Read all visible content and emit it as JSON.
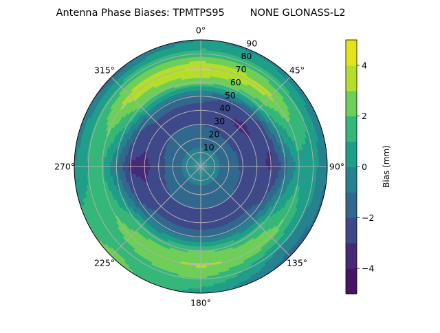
{
  "chart_data": {
    "type": "heatmap",
    "subtype": "polar-filled-contour",
    "title": "Antenna Phase Biases: TPMTPS95        NONE GLONASS-L2",
    "angular_ticks": [
      "0°",
      "45°",
      "90°",
      "135°",
      "180°",
      "225°",
      "270°",
      "315°"
    ],
    "radial_ticks": [
      "10",
      "20",
      "30",
      "40",
      "50",
      "60",
      "70",
      "80",
      "90"
    ],
    "radial_range": [
      0,
      90
    ],
    "grid": true,
    "colorbar": {
      "label": "Bias (mm)",
      "range": [
        -5,
        5
      ],
      "levels": [
        -5,
        -4,
        -3,
        -2,
        -1,
        0,
        1,
        2,
        3,
        4,
        5
      ],
      "tick_values": [
        -4,
        -2,
        0,
        2,
        4
      ],
      "tick_labels": [
        "−4",
        "−2",
        "0",
        "2",
        "4"
      ],
      "colors": [
        "#471365",
        "#482878",
        "#3e4989",
        "#31688e",
        "#26828e",
        "#1f9e89",
        "#35b779",
        "#6ece58",
        "#b5de2b",
        "#e2e418"
      ]
    },
    "azimuth_deg": [
      0,
      45,
      90,
      135,
      180,
      225,
      270,
      315
    ],
    "zenith_deg": [
      0,
      10,
      20,
      30,
      40,
      50,
      60,
      70,
      80,
      90
    ],
    "bias_mm": [
      [
        -0.5,
        -0.5,
        -0.5,
        -0.5,
        -0.5,
        -0.5,
        -0.5,
        -0.5
      ],
      [
        -0.8,
        -0.8,
        -0.8,
        -0.8,
        -0.8,
        -0.8,
        -0.8,
        -0.8
      ],
      [
        -1.3,
        -1.4,
        -1.4,
        -1.3,
        -1.3,
        -1.3,
        -1.4,
        -1.3
      ],
      [
        -2.0,
        -2.5,
        -2.2,
        -2.0,
        -2.0,
        -2.0,
        -2.5,
        -2.0
      ],
      [
        -2.5,
        -3.2,
        -2.6,
        -2.5,
        -2.5,
        -2.5,
        -3.3,
        -2.5
      ],
      [
        -1.5,
        -2.6,
        -3.2,
        -1.5,
        -1.5,
        -1.5,
        -3.2,
        -1.5
      ],
      [
        2.5,
        1.5,
        -1.5,
        1.5,
        2.0,
        1.5,
        -1.0,
        2.0
      ],
      [
        4.2,
        3.2,
        0.5,
        2.5,
        3.2,
        2.5,
        1.0,
        3.5
      ],
      [
        1.5,
        1.5,
        0.5,
        0.0,
        2.0,
        1.5,
        1.0,
        1.5
      ],
      [
        0.0,
        -0.5,
        -1.0,
        -1.5,
        0.5,
        2.5,
        0.0,
        -1.5
      ]
    ]
  }
}
